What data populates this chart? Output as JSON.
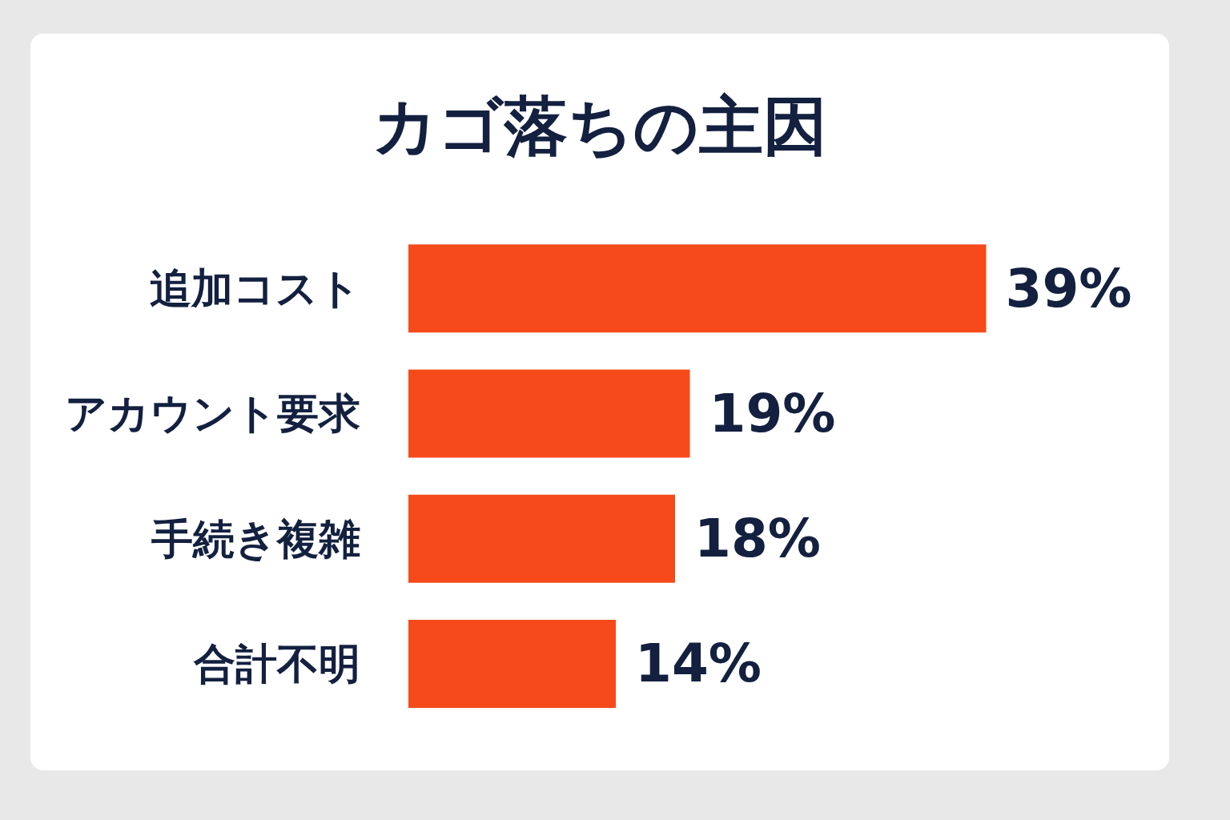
{
  "chart_data": {
    "type": "bar",
    "orientation": "horizontal",
    "title": "カゴ落ちの主因",
    "categories": [
      "追加コスト",
      "アカウント要求",
      "手続き複雑",
      "合計不明"
    ],
    "values": [
      39,
      19,
      18,
      14
    ],
    "value_labels": [
      "39%",
      "19%",
      "18%",
      "14%"
    ],
    "color": "#f64a1a"
  }
}
